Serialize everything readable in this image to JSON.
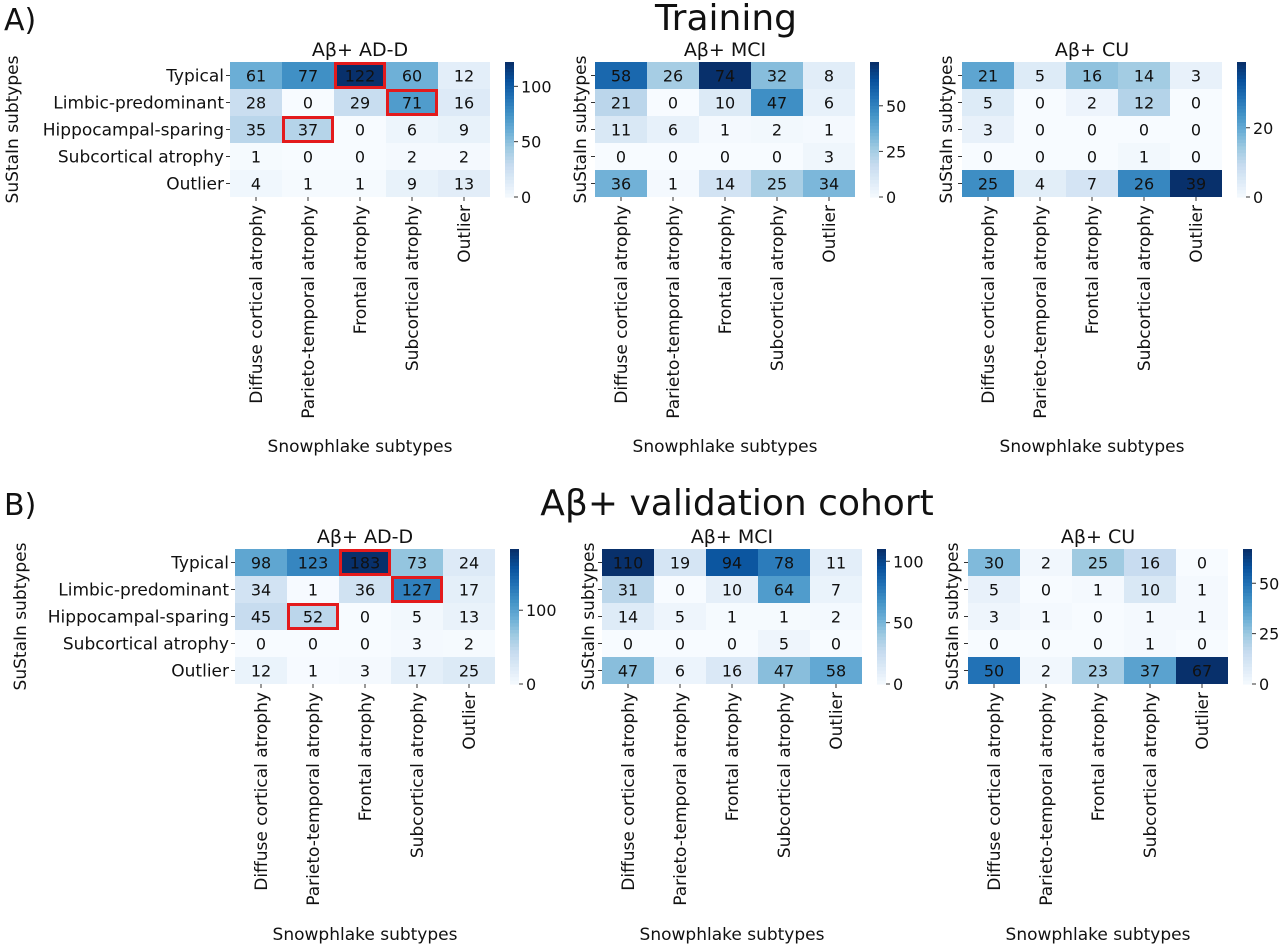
{
  "figure": {
    "panel_a": {
      "letter": "A)",
      "title": "Training"
    },
    "panel_b": {
      "letter": "B)",
      "title": "Aβ+ validation cohort"
    }
  },
  "colormap": {
    "name": "Blues",
    "low": "#f7fbff",
    "high": "#08306b",
    "highlight": "#e31a1c"
  },
  "chart_data": [
    {
      "type": "heatmap",
      "panel": "A",
      "title": "Aβ+  AD-D",
      "ylabel": "SuStaIn subtypes",
      "xlabel": "Snowphlake subtypes",
      "rows": [
        "Typical",
        "Limbic-predominant",
        "Hippocampal-sparing",
        "Subcortical atrophy",
        "Outlier"
      ],
      "cols": [
        "Diffuse cortical atrophy",
        "Parieto-temporal atrophy",
        "Frontal atrophy",
        "Subcortical atrophy",
        "Outlier"
      ],
      "values": [
        [
          61,
          77,
          122,
          60,
          12
        ],
        [
          28,
          0,
          29,
          71,
          16
        ],
        [
          35,
          37,
          0,
          6,
          9
        ],
        [
          1,
          0,
          0,
          2,
          2
        ],
        [
          4,
          1,
          1,
          9,
          13
        ]
      ],
      "vmin": 0,
      "vmax": 122,
      "colorbar_ticks": [
        0,
        50,
        100
      ],
      "highlighted_cells": [
        [
          0,
          2
        ],
        [
          1,
          3
        ],
        [
          2,
          1
        ]
      ]
    },
    {
      "type": "heatmap",
      "panel": "A",
      "title": "Aβ+  MCI",
      "ylabel": "SuStaIn subtypes",
      "xlabel": "Snowphlake subtypes",
      "rows": [
        "Typical",
        "Limbic-predominant",
        "Hippocampal-sparing",
        "Subcortical atrophy",
        "Outlier"
      ],
      "cols": [
        "Diffuse cortical atrophy",
        "Parieto-temporal atrophy",
        "Frontal atrophy",
        "Subcortical atrophy",
        "Outlier"
      ],
      "values": [
        [
          58,
          26,
          74,
          32,
          8
        ],
        [
          21,
          0,
          10,
          47,
          6
        ],
        [
          11,
          6,
          1,
          2,
          1
        ],
        [
          0,
          0,
          0,
          0,
          3
        ],
        [
          36,
          1,
          14,
          25,
          34
        ]
      ],
      "vmin": 0,
      "vmax": 74,
      "colorbar_ticks": [
        0,
        25,
        50
      ],
      "highlighted_cells": []
    },
    {
      "type": "heatmap",
      "panel": "A",
      "title": "Aβ+  CU",
      "ylabel": "SuStaIn subtypes",
      "xlabel": "Snowphlake subtypes",
      "rows": [
        "Typical",
        "Limbic-predominant",
        "Hippocampal-sparing",
        "Subcortical atrophy",
        "Outlier"
      ],
      "cols": [
        "Diffuse cortical atrophy",
        "Parieto-temporal atrophy",
        "Frontal atrophy",
        "Subcortical atrophy",
        "Outlier"
      ],
      "values": [
        [
          21,
          5,
          16,
          14,
          3
        ],
        [
          5,
          0,
          2,
          12,
          0
        ],
        [
          3,
          0,
          0,
          0,
          0
        ],
        [
          0,
          0,
          0,
          1,
          0
        ],
        [
          25,
          4,
          7,
          26,
          39
        ]
      ],
      "vmin": 0,
      "vmax": 39,
      "colorbar_ticks": [
        0,
        20
      ],
      "highlighted_cells": []
    },
    {
      "type": "heatmap",
      "panel": "B",
      "title": "Aβ+  AD-D",
      "ylabel": "SuStaIn subtypes",
      "xlabel": "Snowphlake subtypes",
      "rows": [
        "Typical",
        "Limbic-predominant",
        "Hippocampal-sparing",
        "Subcortical atrophy",
        "Outlier"
      ],
      "cols": [
        "Diffuse cortical atrophy",
        "Parieto-temporal atrophy",
        "Frontal atrophy",
        "Subcortical atrophy",
        "Outlier"
      ],
      "values": [
        [
          98,
          123,
          183,
          73,
          24
        ],
        [
          34,
          1,
          36,
          127,
          17
        ],
        [
          45,
          52,
          0,
          5,
          13
        ],
        [
          0,
          0,
          0,
          3,
          2
        ],
        [
          12,
          1,
          3,
          17,
          25
        ]
      ],
      "vmin": 0,
      "vmax": 183,
      "colorbar_ticks": [
        0,
        100
      ],
      "highlighted_cells": [
        [
          0,
          2
        ],
        [
          1,
          3
        ],
        [
          2,
          1
        ]
      ]
    },
    {
      "type": "heatmap",
      "panel": "B",
      "title": "Aβ+  MCI",
      "ylabel": "SuStaIn subtypes",
      "xlabel": "Snowphlake subtypes",
      "rows": [
        "Typical",
        "Limbic-predominant",
        "Hippocampal-sparing",
        "Subcortical atrophy",
        "Outlier"
      ],
      "cols": [
        "Diffuse cortical atrophy",
        "Parieto-temporal atrophy",
        "Frontal atrophy",
        "Subcortical atrophy",
        "Outlier"
      ],
      "values": [
        [
          110,
          19,
          94,
          78,
          11
        ],
        [
          31,
          0,
          10,
          64,
          7
        ],
        [
          14,
          5,
          1,
          1,
          2
        ],
        [
          0,
          0,
          0,
          5,
          0
        ],
        [
          47,
          6,
          16,
          47,
          58
        ]
      ],
      "vmin": 0,
      "vmax": 110,
      "colorbar_ticks": [
        0,
        50,
        100
      ],
      "highlighted_cells": []
    },
    {
      "type": "heatmap",
      "panel": "B",
      "title": "Aβ+  CU",
      "ylabel": "SuStaIn subtypes",
      "xlabel": "Snowphlake subtypes",
      "rows": [
        "Typical",
        "Limbic-predominant",
        "Hippocampal-sparing",
        "Subcortical atrophy",
        "Outlier"
      ],
      "cols": [
        "Diffuse cortical atrophy",
        "Parieto-temporal atrophy",
        "Frontal atrophy",
        "Subcortical atrophy",
        "Outlier"
      ],
      "values": [
        [
          30,
          2,
          25,
          16,
          0
        ],
        [
          5,
          0,
          1,
          10,
          1
        ],
        [
          3,
          1,
          0,
          1,
          1
        ],
        [
          0,
          0,
          0,
          1,
          0
        ],
        [
          50,
          2,
          23,
          37,
          67
        ]
      ],
      "vmin": 0,
      "vmax": 67,
      "colorbar_ticks": [
        0,
        25,
        50
      ],
      "highlighted_cells": []
    }
  ]
}
